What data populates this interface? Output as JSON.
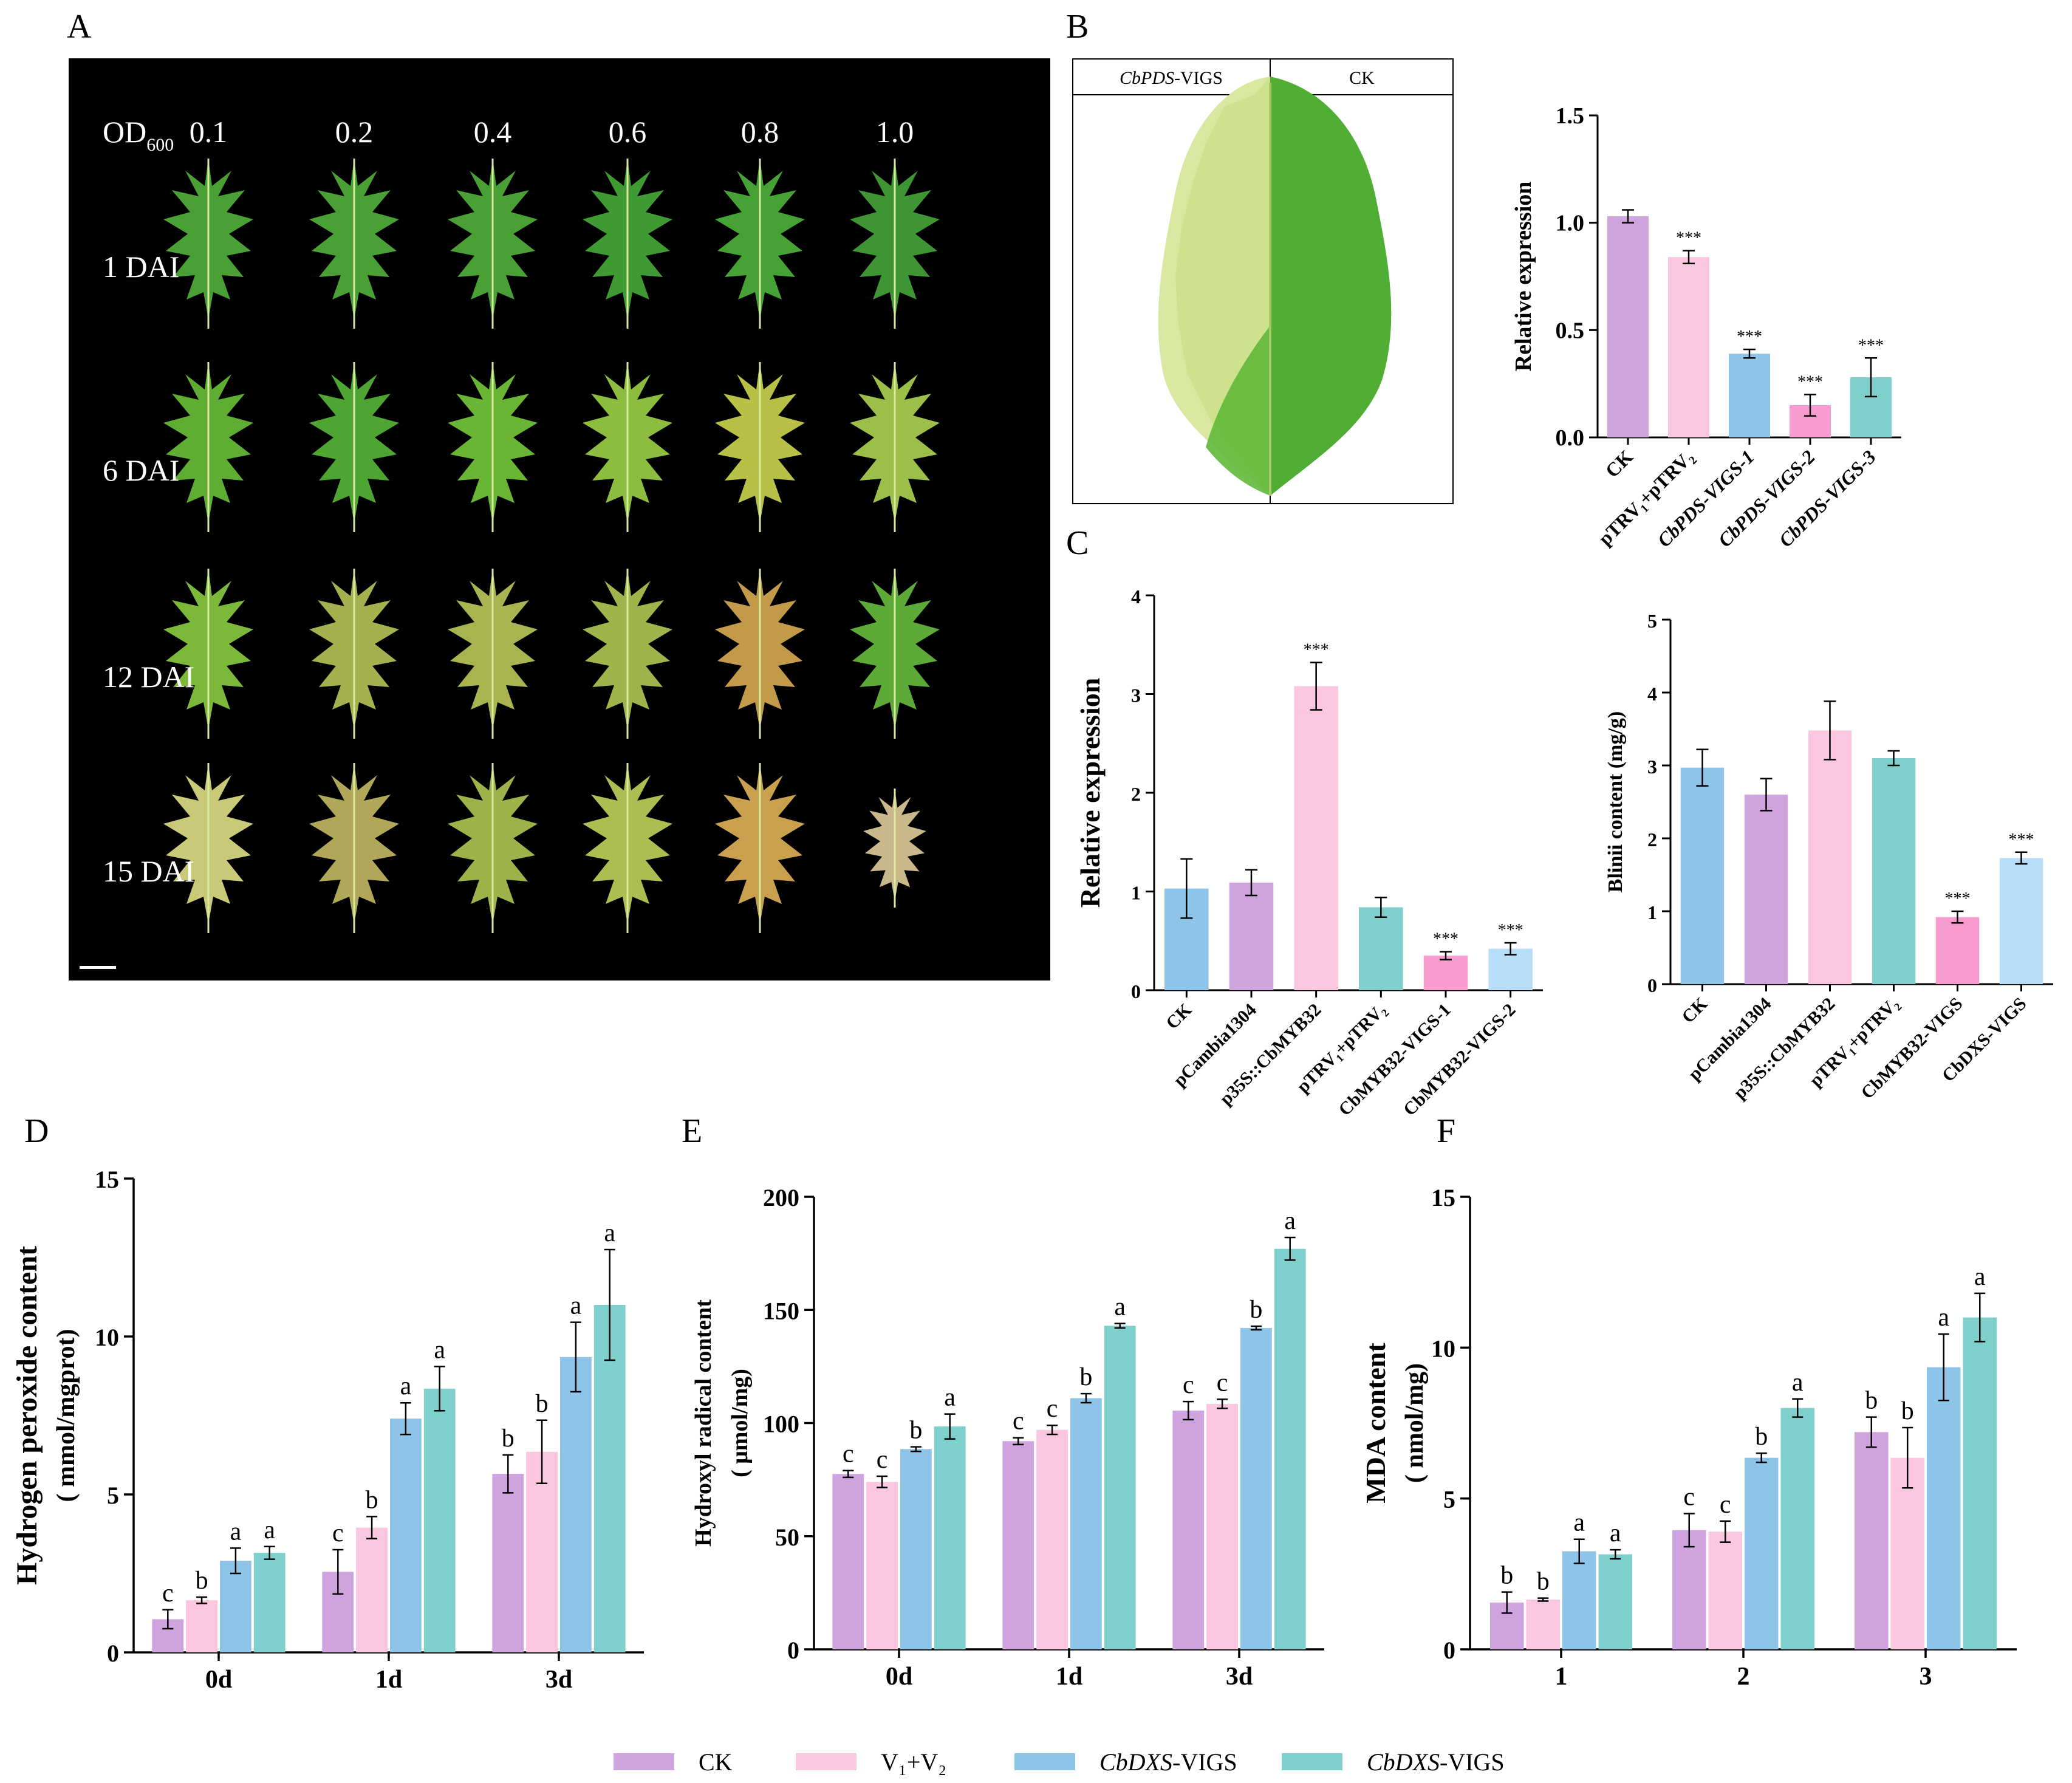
{
  "panel_labels": {
    "A": "A",
    "B": "B",
    "C": "C",
    "D": "D",
    "E": "E",
    "F": "F"
  },
  "colors": {
    "purple": "#cfa3dd",
    "pink": "#fbc6e0",
    "blue": "#8ec4e8",
    "teal": "#7fd0cd",
    "hotpink": "#f89ccf",
    "lightblue": "#b8def7"
  },
  "panelA": {
    "od_label": "OD",
    "od_sub": "600",
    "od_values": [
      "0.1",
      "0.2",
      "0.4",
      "0.6",
      "0.8",
      "1.0"
    ],
    "rows": [
      "1 DAI",
      "6 DAI",
      "12 DAI",
      "15 DAI"
    ]
  },
  "panelB_image": {
    "left_label_italic": "CbPDS",
    "left_label_rest": "-VIGS",
    "right_label": "CK"
  },
  "legend": [
    {
      "text": "CK",
      "color": "#cfa3dd"
    },
    {
      "text": "V₁+V₂",
      "color": "#fbc6e0"
    },
    {
      "text_italic": "CbDXS",
      "text": "-VIGS",
      "color": "#8ec4e8"
    },
    {
      "text_italic": "CbDXS",
      "text": "-VIGS",
      "color": "#7fd0cd"
    }
  ],
  "chart_data": [
    {
      "id": "B",
      "type": "bar",
      "ylabel": "Relative expression",
      "ylim": [
        0,
        1.5
      ],
      "yticks": [
        "0.0",
        "0.5",
        "1.0",
        "1.5"
      ],
      "categories": [
        "CK",
        "pTRV₁+pTRV₂",
        "CbPDS-VIGS-1",
        "CbPDS-VIGS-2",
        "CbPDS-VIGS-3"
      ],
      "category_italic": [
        false,
        false,
        true,
        true,
        true
      ],
      "values": [
        1.03,
        0.84,
        0.39,
        0.15,
        0.28
      ],
      "errors": [
        0.03,
        0.03,
        0.02,
        0.05,
        0.09
      ],
      "annotations": [
        "",
        "***",
        "***",
        "***",
        "***"
      ],
      "colors": [
        "#cfa3dd",
        "#fbc6e0",
        "#8ec4e8",
        "#f89ccf",
        "#7fd0cd"
      ]
    },
    {
      "id": "C1",
      "type": "bar",
      "ylabel": "Relative expression",
      "ylim": [
        0,
        4
      ],
      "yticks": [
        "0",
        "1",
        "2",
        "3",
        "4"
      ],
      "categories": [
        "CK",
        "pCambia1304",
        "p35S::CbMYB32",
        "pTRV₁+pTRV₂",
        "CbMYB32-VIGS-1",
        "CbMYB32-VIGS-2"
      ],
      "values": [
        1.03,
        1.09,
        3.08,
        0.84,
        0.35,
        0.42
      ],
      "errors": [
        0.3,
        0.13,
        0.24,
        0.1,
        0.04,
        0.06
      ],
      "annotations": [
        "",
        "",
        "***",
        "",
        "***",
        "***"
      ],
      "colors": [
        "#8ec4e8",
        "#cfa3dd",
        "#fbc6e0",
        "#7fd0cd",
        "#f89ccf",
        "#b8def7"
      ]
    },
    {
      "id": "C2",
      "type": "bar",
      "ylabel": "Blinii content (mg/g)",
      "ylim": [
        0,
        5
      ],
      "yticks": [
        "0",
        "1",
        "2",
        "3",
        "4",
        "5"
      ],
      "categories": [
        "CK",
        "pCambia1304",
        "p35S::CbMYB32",
        "pTRV₁+pTRV₂",
        "CbMYB32-VIGS",
        "CbDXS-VIGS"
      ],
      "values": [
        2.97,
        2.6,
        3.48,
        3.1,
        0.92,
        1.73
      ],
      "errors": [
        0.25,
        0.22,
        0.4,
        0.1,
        0.08,
        0.08
      ],
      "annotations": [
        "",
        "",
        "",
        "",
        "***",
        "***"
      ],
      "colors": [
        "#8ec4e8",
        "#cfa3dd",
        "#fbc6e0",
        "#7fd0cd",
        "#f89ccf",
        "#b8def7"
      ]
    },
    {
      "id": "D",
      "type": "bar",
      "ylabel_line1": "Hydrogen peroxide content",
      "ylabel_line2": "( mmol/mgprot)",
      "ylim": [
        0,
        15
      ],
      "yticks": [
        "0",
        "5",
        "10",
        "15"
      ],
      "categories": [
        "0d",
        "1d",
        "3d"
      ],
      "series": [
        {
          "values": [
            1.05,
            2.55,
            5.65
          ],
          "errors": [
            0.3,
            0.7,
            0.6
          ],
          "letters": [
            "c",
            "c",
            "b"
          ]
        },
        {
          "values": [
            1.65,
            3.95,
            6.35
          ],
          "errors": [
            0.1,
            0.35,
            1.0
          ],
          "letters": [
            "b",
            "b",
            "b"
          ]
        },
        {
          "values": [
            2.9,
            7.4,
            9.35
          ],
          "errors": [
            0.4,
            0.5,
            1.1
          ],
          "letters": [
            "a",
            "a",
            "a"
          ]
        },
        {
          "values": [
            3.15,
            8.35,
            11.0
          ],
          "errors": [
            0.2,
            0.7,
            1.75
          ],
          "letters": [
            "a",
            "a",
            "a"
          ]
        }
      ]
    },
    {
      "id": "E",
      "type": "bar",
      "ylabel_line1": "Hydroxyl radical content",
      "ylabel_line2": "( μmol/mg)",
      "ylim": [
        0,
        200
      ],
      "yticks": [
        "0",
        "50",
        "100",
        "150",
        "200"
      ],
      "categories": [
        "0d",
        "1d",
        "3d"
      ],
      "series": [
        {
          "values": [
            77.5,
            92,
            105.5
          ],
          "errors": [
            1.5,
            1.5,
            4
          ],
          "letters": [
            "c",
            "c",
            "c"
          ]
        },
        {
          "values": [
            74,
            97,
            108.5
          ],
          "errors": [
            2.5,
            2,
            2
          ],
          "letters": [
            "c",
            "c",
            "c"
          ]
        },
        {
          "values": [
            88.5,
            111,
            142
          ],
          "errors": [
            1,
            2,
            0.8
          ],
          "letters": [
            "b",
            "b",
            "b"
          ]
        },
        {
          "values": [
            98.5,
            143,
            177
          ],
          "errors": [
            5.5,
            1,
            5
          ],
          "letters": [
            "a",
            "a",
            "a"
          ]
        }
      ]
    },
    {
      "id": "F",
      "type": "bar",
      "ylabel_line1": "MDA content",
      "ylabel_line2": "( nmol/mg)",
      "ylim": [
        0,
        15
      ],
      "yticks": [
        "0",
        "5",
        "10",
        "15"
      ],
      "categories": [
        "1",
        "2",
        "3"
      ],
      "series": [
        {
          "values": [
            1.55,
            3.95,
            7.2
          ],
          "errors": [
            0.35,
            0.55,
            0.5
          ],
          "letters": [
            "b",
            "c",
            "b"
          ]
        },
        {
          "values": [
            1.65,
            3.9,
            6.35
          ],
          "errors": [
            0.05,
            0.35,
            1.0
          ],
          "letters": [
            "b",
            "c",
            "b"
          ]
        },
        {
          "values": [
            3.25,
            6.35,
            9.35
          ],
          "errors": [
            0.4,
            0.15,
            1.1
          ],
          "letters": [
            "a",
            "b",
            "a"
          ]
        },
        {
          "values": [
            3.15,
            8.0,
            11.0
          ],
          "errors": [
            0.15,
            0.3,
            0.8
          ],
          "letters": [
            "a",
            "a",
            "a"
          ]
        }
      ]
    }
  ]
}
